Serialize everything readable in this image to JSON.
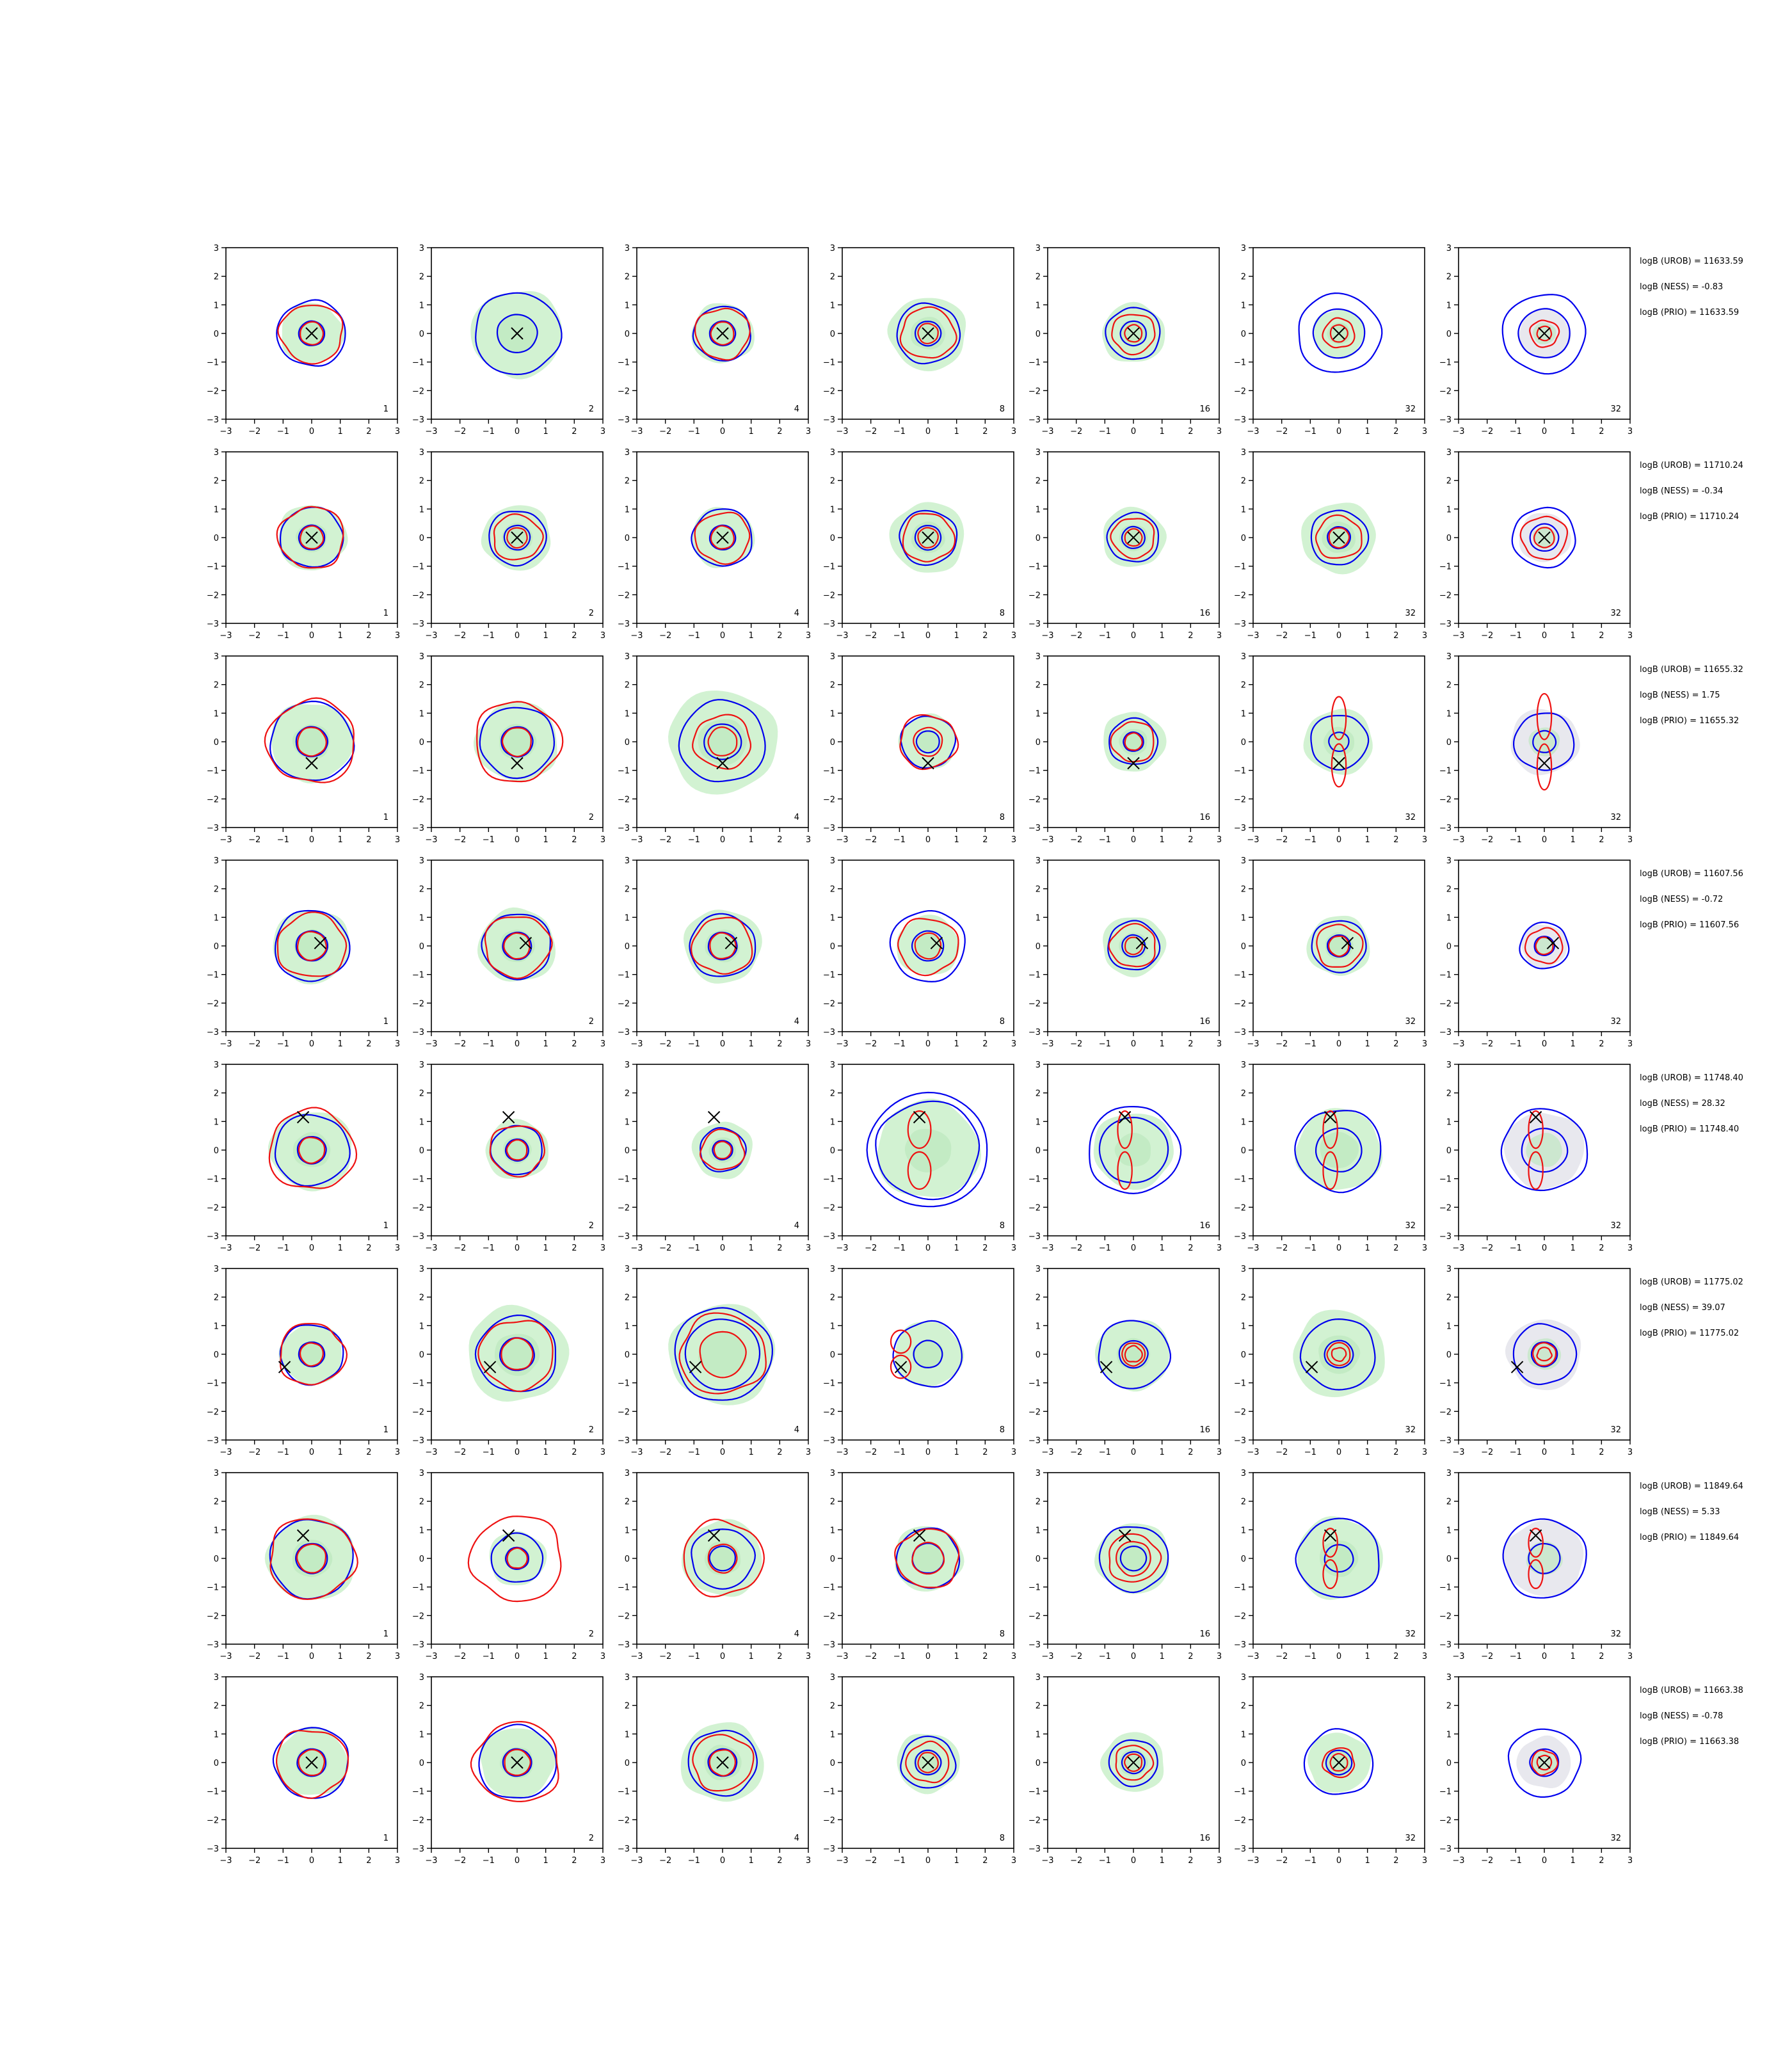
{
  "chart_data": {
    "type": "contour-grid",
    "xlim": [
      -3,
      3
    ],
    "ylim": [
      -3,
      3
    ],
    "ticks": [
      -3,
      -2,
      -1,
      0,
      1,
      2,
      3
    ],
    "columns": [
      1,
      2,
      4,
      8,
      16,
      32,
      32
    ],
    "colors": {
      "prior_fill": "#d2f2d2",
      "prior_fill_last": "#e8e8ee",
      "blue": "#0000ee",
      "red": "#ee1111",
      "marker": "#000000"
    },
    "rows": [
      {
        "marker": [
          0,
          0
        ],
        "logB_UROB": "logB (UROB) = 11633.59",
        "logB_NESS": "logB (NESS) = -0.83",
        "logB_PRIO": "logB (PRIO) = 11633.59",
        "panels": [
          {
            "fill": 1.1,
            "blue": [
              1.2,
              0.45
            ],
            "red": [
              1.1,
              0.4
            ]
          },
          {
            "fill": 1.6,
            "blue": [
              1.5,
              0.7
            ],
            "red": []
          },
          {
            "fill": 1.1,
            "blue": [
              1.0,
              0.45
            ],
            "red": [
              0.95,
              0.4
            ]
          },
          {
            "fill": 1.35,
            "blue": [
              1.1,
              0.45
            ],
            "red": [
              0.95,
              0.35
            ]
          },
          {
            "fill": 1.1,
            "blue": [
              0.95,
              0.45
            ],
            "red": [
              0.75,
              0.3
            ]
          },
          {
            "fill": 0.9,
            "blue": [
              1.45,
              0.9
            ],
            "red": [
              0.55,
              0.3
            ]
          },
          {
            "fill": 0.9,
            "blue": [
              1.45,
              0.9
            ],
            "red": [
              0.5,
              0.25
            ]
          }
        ]
      },
      {
        "marker": [
          0,
          0
        ],
        "logB_UROB": "logB (UROB) = 11710.24",
        "logB_NESS": "logB (NESS) = -0.34",
        "logB_PRIO": "logB (PRIO) = 11710.24",
        "panels": [
          {
            "fill": 1.2,
            "blue": [
              1.1,
              0.45
            ],
            "red": [
              1.15,
              0.4
            ]
          },
          {
            "fill": 1.2,
            "blue": [
              1.0,
              0.45
            ],
            "red": [
              0.85,
              0.35
            ]
          },
          {
            "fill": 1.1,
            "blue": [
              1.05,
              0.45
            ],
            "red": [
              0.95,
              0.4
            ]
          },
          {
            "fill": 1.3,
            "blue": [
              1.0,
              0.45
            ],
            "red": [
              0.9,
              0.35
            ]
          },
          {
            "fill": 1.1,
            "blue": [
              0.9,
              0.4
            ],
            "red": [
              0.75,
              0.3
            ]
          },
          {
            "fill": 1.3,
            "blue": [
              1.0,
              0.4
            ],
            "red": [
              0.8,
              0.35
            ]
          },
          {
            "fill": 0.9,
            "blue": [
              1.1,
              0.5
            ],
            "red": [
              0.8,
              0.35
            ]
          }
        ]
      },
      {
        "marker": [
          0,
          -0.75
        ],
        "logB_UROB": "logB (UROB) = 11655.32",
        "logB_NESS": "logB (NESS) = 1.75",
        "logB_PRIO": "logB (PRIO) = 11655.32",
        "panels": [
          {
            "fill": 1.45,
            "blue": [
              1.45,
              0.55
            ],
            "red": [
              1.55,
              0.5
            ]
          },
          {
            "fill": 1.45,
            "blue": [
              1.3,
              0.55
            ],
            "red": [
              1.5,
              0.5
            ]
          },
          {
            "fill": 1.9,
            "blue": [
              1.5,
              0.65
            ],
            "red": [
              1.0,
              0.5
            ]
          },
          {
            "fill": 1.0,
            "blue": [
              0.95,
              0.4
            ],
            "red": [
              1.0,
              0.5
            ]
          },
          {
            "fill": 1.1,
            "blue": [
              0.85,
              0.35
            ],
            "red": [
              0.75,
              0.3
            ]
          },
          {
            "fill": 1.2,
            "blue": [
              1.0,
              0.35
            ],
            "red": [
              0.25,
              1.5
            ]
          },
          {
            "fill": 1.2,
            "blue": [
              1.05,
              0.4
            ],
            "red": [
              0.25,
              1.6
            ]
          }
        ]
      },
      {
        "marker": [
          0.3,
          0.1
        ],
        "logB_UROB": "logB (UROB) = 11607.56",
        "logB_NESS": "logB (NESS) = -0.72",
        "logB_PRIO": "logB (PRIO) = 11607.56",
        "panels": [
          {
            "fill": 1.35,
            "blue": [
              1.3,
              0.55
            ],
            "red": [
              1.2,
              0.5
            ]
          },
          {
            "fill": 1.35,
            "blue": [
              1.2,
              0.5
            ],
            "red": [
              1.15,
              0.45
            ]
          },
          {
            "fill": 1.35,
            "blue": [
              1.15,
              0.5
            ],
            "red": [
              1.05,
              0.45
            ]
          },
          {
            "fill": 1.1,
            "blue": [
              1.3,
              0.55
            ],
            "red": [
              1.05,
              0.45
            ]
          },
          {
            "fill": 1.1,
            "blue": [
              0.9,
              0.4
            ],
            "red": [
              0.8,
              0.3
            ]
          },
          {
            "fill": 1.1,
            "blue": [
              0.95,
              0.4
            ],
            "red": [
              0.8,
              0.35
            ]
          },
          {
            "fill": 0.8,
            "blue": [
              0.85,
              0.35
            ],
            "red": [
              0.65,
              0.3
            ]
          }
        ]
      },
      {
        "marker": [
          -0.3,
          1.15
        ],
        "logB_UROB": "logB (UROB) = 11748.40",
        "logB_NESS": "logB (NESS) = 28.32",
        "logB_PRIO": "logB (PRIO) = 11748.40",
        "panels": [
          {
            "fill": 1.45,
            "blue": [
              1.3,
              0.5
            ],
            "red": [
              1.5,
              0.45
            ]
          },
          {
            "fill": 1.1,
            "blue": [
              0.9,
              0.4
            ],
            "red": [
              0.95,
              0.35
            ]
          },
          {
            "fill": 1.05,
            "blue": [
              0.8,
              0.35
            ],
            "red": [
              0.75,
              0.3
            ]
          },
          {
            "fill": 1.8,
            "blue": [
              1.8,
              2.1
            ],
            "red": [
              0.4,
              1.3
            ]
          },
          {
            "fill": 1.4,
            "blue": [
              1.6,
              1.2
            ],
            "red": [
              0.25,
              1.3
            ]
          },
          {
            "fill": 1.5,
            "blue": [
              1.5,
              0.8
            ],
            "red": [
              0.25,
              1.3
            ]
          },
          {
            "fill": 1.4,
            "blue": [
              1.5,
              0.8
            ],
            "red": [
              0.25,
              1.3
            ]
          }
        ]
      },
      {
        "marker": [
          -0.95,
          -0.45
        ],
        "logB_UROB": "logB (UROB) = 11775.02",
        "logB_NESS": "logB (NESS) = 39.07",
        "logB_PRIO": "logB (PRIO) = 11775.02",
        "panels": [
          {
            "fill": 1.1,
            "blue": [
              1.1,
              0.45
            ],
            "red": [
              1.15,
              0.4
            ]
          },
          {
            "fill": 1.75,
            "blue": [
              1.4,
              0.6
            ],
            "red": [
              1.3,
              0.55
            ]
          },
          {
            "fill": 1.85,
            "blue": [
              1.7,
              1.3
            ],
            "red": [
              1.5,
              0.8
            ]
          },
          {
            "fill": 1.2,
            "blue": [
              1.2,
              0.5
            ],
            "red": [
              0.35,
              0.8
            ]
          },
          {
            "fill": 1.3,
            "blue": [
              1.25,
              0.5
            ],
            "red": [
              0.3,
              0.4
            ]
          },
          {
            "fill": 1.6,
            "blue": [
              1.3,
              0.5
            ],
            "red": [
              0.25,
              0.4
            ]
          },
          {
            "fill": 1.3,
            "blue": [
              1.1,
              0.45
            ],
            "red": [
              0.25,
              0.4
            ]
          }
        ]
      },
      {
        "marker": [
          -0.3,
          0.8
        ],
        "logB_UROB": "logB (UROB) = 11849.64",
        "logB_NESS": "logB (NESS) = 5.33",
        "logB_PRIO": "logB (PRIO) = 11849.64",
        "panels": [
          {
            "fill": 1.55,
            "blue": [
              1.45,
              0.55
            ],
            "red": [
              1.5,
              0.5
            ]
          },
          {
            "fill": 1.0,
            "blue": [
              0.9,
              0.4
            ],
            "red": [
              1.6,
              0.35
            ]
          },
          {
            "fill": 1.4,
            "blue": [
              1.1,
              0.45
            ],
            "red": [
              1.4,
              0.5
            ]
          },
          {
            "fill": 1.2,
            "blue": [
              1.1,
              0.55
            ],
            "red": [
              1.1,
              0.55
            ]
          },
          {
            "fill": 1.3,
            "blue": [
              1.2,
              0.45
            ],
            "red": [
              0.9,
              0.6
            ]
          },
          {
            "fill": 1.5,
            "blue": [
              1.45,
              0.5
            ],
            "red": [
              0.25,
              1.0
            ]
          },
          {
            "fill": 1.4,
            "blue": [
              1.45,
              0.55
            ],
            "red": [
              0.25,
              1.0
            ]
          }
        ]
      },
      {
        "marker": [
          0,
          0
        ],
        "logB_UROB": "logB (UROB) = 11663.38",
        "logB_NESS": "logB (NESS) = -0.78",
        "logB_PRIO": "logB (PRIO) = 11663.38",
        "panels": [
          {
            "fill": 1.25,
            "blue": [
              1.3,
              0.5
            ],
            "red": [
              1.25,
              0.45
            ]
          },
          {
            "fill": 1.3,
            "blue": [
              1.35,
              0.5
            ],
            "red": [
              1.5,
              0.45
            ]
          },
          {
            "fill": 1.45,
            "blue": [
              1.2,
              0.5
            ],
            "red": [
              1.05,
              0.45
            ]
          },
          {
            "fill": 1.1,
            "blue": [
              0.95,
              0.45
            ],
            "red": [
              0.75,
              0.35
            ]
          },
          {
            "fill": 1.1,
            "blue": [
              0.85,
              0.4
            ],
            "red": [
              0.65,
              0.3
            ]
          },
          {
            "fill": 1.1,
            "blue": [
              1.2,
              0.45
            ],
            "red": [
              0.55,
              0.3
            ]
          },
          {
            "fill": 0.95,
            "blue": [
              1.25,
              0.5
            ],
            "red": [
              0.45,
              0.25
            ]
          }
        ]
      }
    ]
  }
}
